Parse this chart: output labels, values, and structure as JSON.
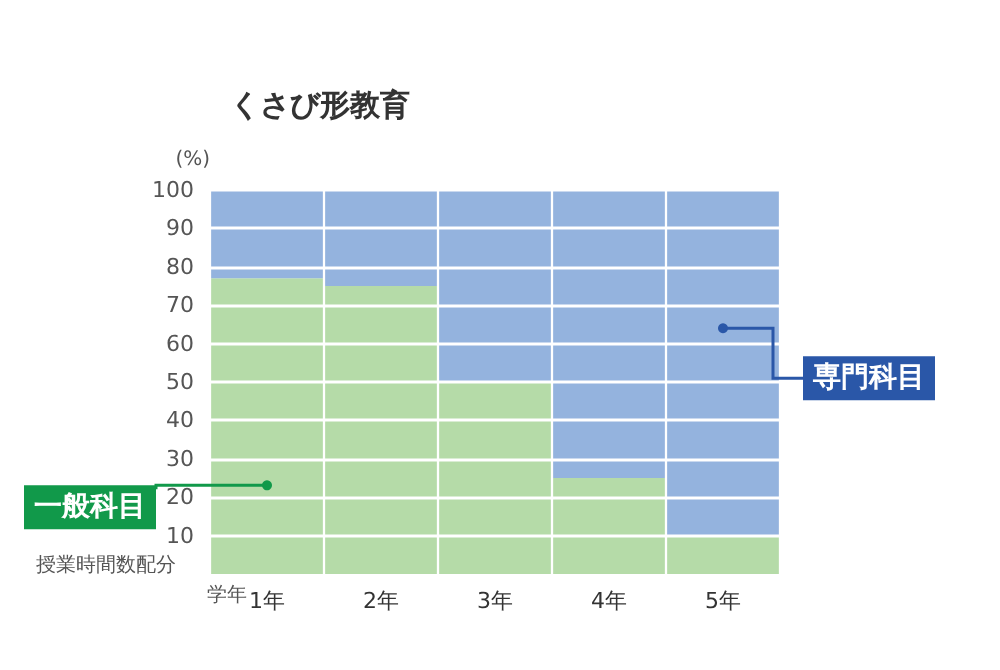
{
  "chart_data": {
    "type": "bar",
    "stacked": true,
    "title": "くさび形教育",
    "ylabel": "(%)",
    "xlabel": "学年",
    "annotations": [
      "授業時間数配分"
    ],
    "categories": [
      "1年",
      "2年",
      "3年",
      "4年",
      "5年"
    ],
    "series": [
      {
        "name": "一般科目",
        "color": "#b5dba8",
        "values": [
          77,
          75,
          50,
          25,
          10
        ]
      },
      {
        "name": "専門科目",
        "color": "#94b3de",
        "values": [
          23,
          25,
          50,
          75,
          90
        ]
      }
    ],
    "ylim": [
      0,
      100
    ],
    "yticks": [
      10,
      20,
      30,
      40,
      50,
      60,
      70,
      80,
      90,
      100
    ],
    "grid": "y",
    "legend": false
  }
}
